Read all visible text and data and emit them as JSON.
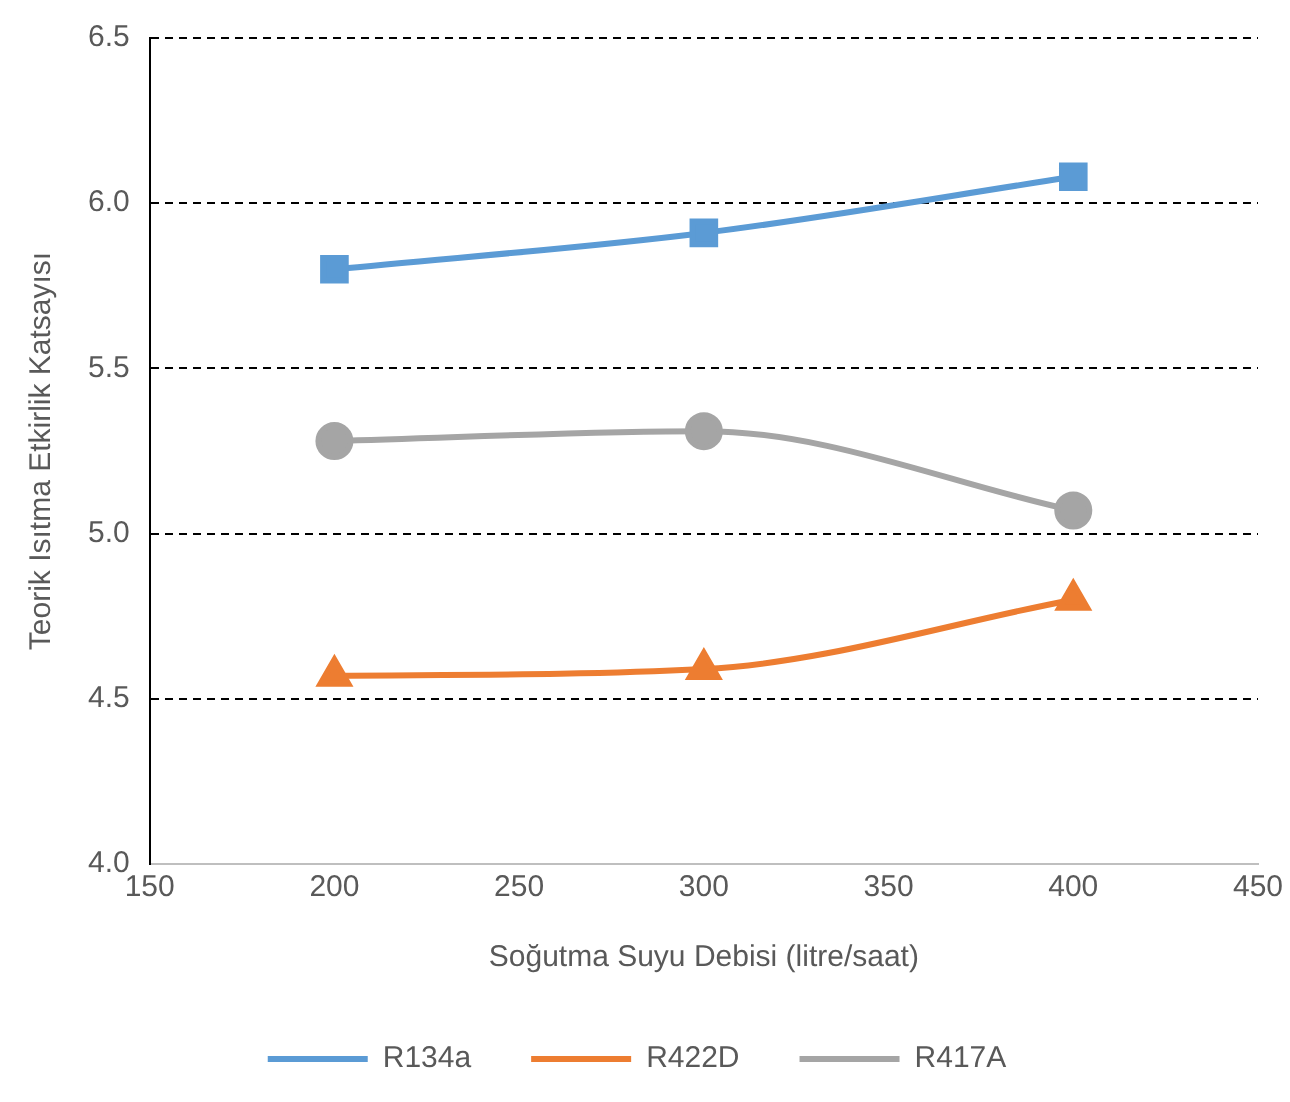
{
  "chart_data": {
    "type": "line",
    "xlabel": "Soğutma Suyu Debisi (litre/saat)",
    "ylabel": "Teorik Isıtma Etkirlik Katsayısı",
    "x": [
      200,
      300,
      400
    ],
    "xlim": [
      150,
      450
    ],
    "xticks": [
      150,
      200,
      250,
      300,
      350,
      400,
      450
    ],
    "ylim": [
      4.0,
      6.5
    ],
    "yticks": [
      {
        "value": 4.0,
        "label": "4.0"
      },
      {
        "value": 4.5,
        "label": "4.5"
      },
      {
        "value": 5.0,
        "label": "5.0"
      },
      {
        "value": 5.5,
        "label": "5.5"
      },
      {
        "value": 6.0,
        "label": "6.0"
      },
      {
        "value": 6.5,
        "label": "6.5"
      }
    ],
    "grid": "y",
    "legend": "bottom",
    "line_style": "solid",
    "series": [
      {
        "name": "R134a",
        "color": "#5b9bd5",
        "marker": "square",
        "values": [
          5.8,
          5.91,
          6.08
        ]
      },
      {
        "name": "R422D",
        "color": "#ed7d31",
        "marker": "triangle",
        "values": [
          4.57,
          4.59,
          4.8
        ]
      },
      {
        "name": "R417A",
        "color": "#a5a5a5",
        "marker": "circle",
        "values": [
          5.28,
          5.31,
          5.07
        ]
      }
    ]
  }
}
